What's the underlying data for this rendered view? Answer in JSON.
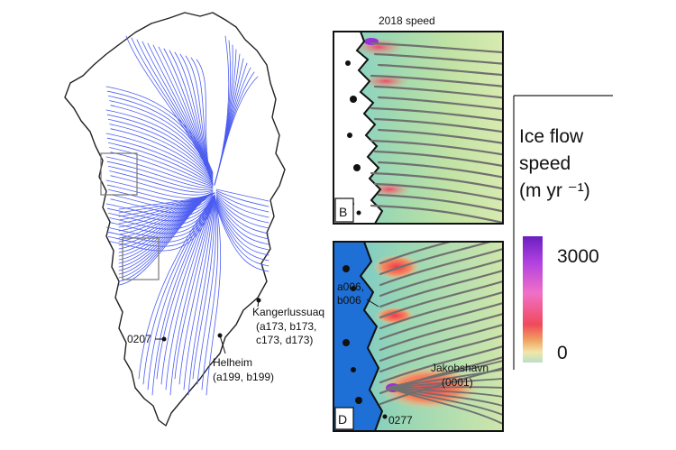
{
  "panels": {
    "top_title": "2018 speed",
    "top_letter": "B",
    "bottom_letter": "D"
  },
  "glaciers": {
    "kangerlussuaq": "Kangerlussuaq",
    "kangerlussuaq_ids": "(a173, b173,",
    "kangerlussuaq_ids2": "c173, d173)",
    "helheim": "Helheim",
    "helheim_ids": "(a199, b199)",
    "g0207": "0207",
    "a006": "a006,",
    "b006": "b006",
    "jakobshavn": "Jakobshavn",
    "jakobshavn_id": "(0001)",
    "g0277": "0277"
  },
  "legend": {
    "title_line1": "Ice flow",
    "title_line2": "speed",
    "title_line3": "(m yr ⁻¹)",
    "max_label": "3000",
    "min_label": "0",
    "colors": [
      "#f2e6a8",
      "#e8d26a",
      "#f08060",
      "#f04a5a",
      "#f060b0",
      "#d040d8",
      "#9b30d8",
      "#6a1fc0"
    ]
  },
  "colors": {
    "flowline": "#4b5cf0",
    "coast": "#222222",
    "ocean": "#1e6fd6",
    "ice_base": "#7cc8b0",
    "streamline": "#707070"
  }
}
